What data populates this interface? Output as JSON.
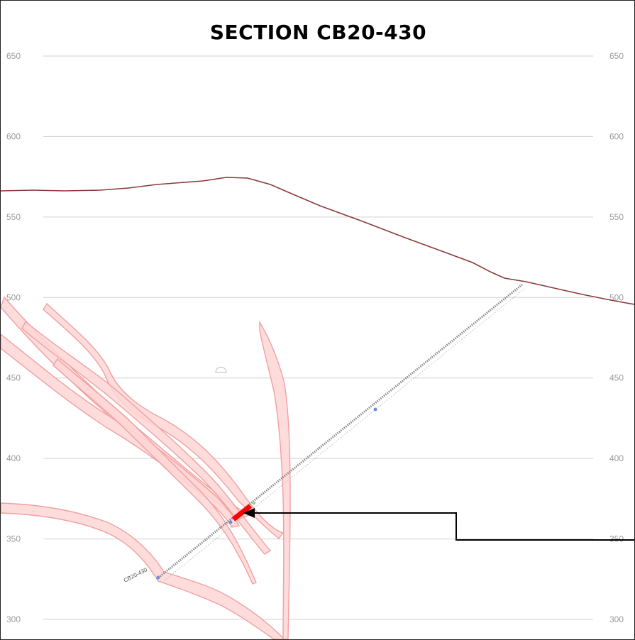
{
  "title": "SECTION CB20-430",
  "elevation_axis": {
    "ticks": [
      650,
      600,
      550,
      500,
      450,
      400,
      350,
      300
    ],
    "grid": true
  },
  "drillhole": {
    "label": "CB20-430",
    "intercept_color": "#ff0000",
    "callout_arrow": true
  },
  "colors": {
    "grid": "#d0d0d0",
    "tick_text": "#9a9a9a",
    "topography": "#8b3a3a",
    "vein_fill": "#ffd6d6",
    "vein_stroke": "#f0a0a0",
    "drill_trace": "#888888",
    "intercept": "#ff0000",
    "arrow": "#000000"
  }
}
